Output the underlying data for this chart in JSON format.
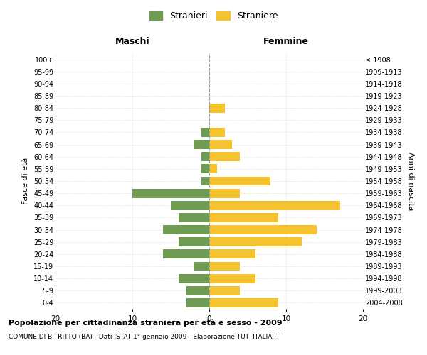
{
  "age_groups": [
    "0-4",
    "5-9",
    "10-14",
    "15-19",
    "20-24",
    "25-29",
    "30-34",
    "35-39",
    "40-44",
    "45-49",
    "50-54",
    "55-59",
    "60-64",
    "65-69",
    "70-74",
    "75-79",
    "80-84",
    "85-89",
    "90-94",
    "95-99",
    "100+"
  ],
  "birth_years": [
    "2004-2008",
    "1999-2003",
    "1994-1998",
    "1989-1993",
    "1984-1988",
    "1979-1983",
    "1974-1978",
    "1969-1973",
    "1964-1968",
    "1959-1963",
    "1954-1958",
    "1949-1953",
    "1944-1948",
    "1939-1943",
    "1934-1938",
    "1929-1933",
    "1924-1928",
    "1919-1923",
    "1914-1918",
    "1909-1913",
    "≤ 1908"
  ],
  "maschi": [
    3,
    3,
    4,
    2,
    6,
    4,
    6,
    4,
    5,
    10,
    1,
    1,
    1,
    2,
    1,
    0,
    0,
    0,
    0,
    0,
    0
  ],
  "femmine": [
    9,
    4,
    6,
    4,
    6,
    12,
    14,
    9,
    17,
    4,
    8,
    1,
    4,
    3,
    2,
    0,
    2,
    0,
    0,
    0,
    0
  ],
  "color_maschi": "#6f9c52",
  "color_femmine": "#f5c330",
  "title": "Popolazione per cittadinanza straniera per età e sesso - 2009",
  "subtitle": "COMUNE DI BITRITTO (BA) - Dati ISTAT 1° gennaio 2009 - Elaborazione TUTTITALIA.IT",
  "xlabel_left": "Maschi",
  "xlabel_right": "Femmine",
  "ylabel_left": "Fasce di età",
  "ylabel_right": "Anni di nascita",
  "legend_maschi": "Stranieri",
  "legend_femmine": "Straniere",
  "xlim": 20,
  "background_color": "#ffffff",
  "grid_color": "#cccccc"
}
